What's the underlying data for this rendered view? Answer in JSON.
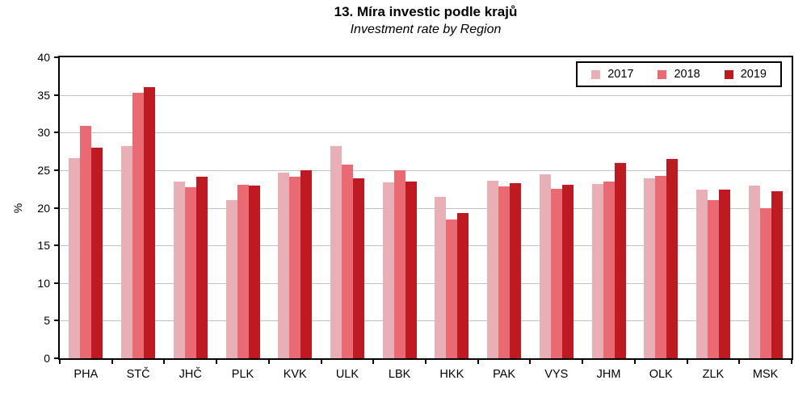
{
  "title": "13. Míra investic podle krajů",
  "subtitle": "Investment rate by Region",
  "chart_data": {
    "type": "bar",
    "categories": [
      "PHA",
      "STČ",
      "JHČ",
      "PLK",
      "KVK",
      "ULK",
      "LBK",
      "HKK",
      "PAK",
      "VYS",
      "JHM",
      "OLK",
      "ZLK",
      "MSK"
    ],
    "series": [
      {
        "name": "2017",
        "color": "#e8b0b6",
        "values": [
          26.6,
          28.2,
          23.5,
          21.0,
          24.7,
          28.2,
          23.4,
          21.5,
          23.6,
          24.5,
          23.2,
          23.9,
          22.4,
          23.0
        ]
      },
      {
        "name": "2018",
        "color": "#ea6a73",
        "values": [
          30.9,
          35.3,
          22.7,
          23.1,
          24.1,
          25.7,
          25.0,
          18.4,
          22.8,
          22.5,
          23.5,
          24.2,
          21.0,
          20.0
        ]
      },
      {
        "name": "2019",
        "color": "#be1a22",
        "values": [
          28.0,
          36.0,
          24.1,
          22.9,
          25.0,
          23.9,
          23.5,
          19.3,
          23.3,
          23.1,
          26.0,
          26.5,
          22.4,
          22.2
        ]
      }
    ],
    "xlabel": "",
    "ylabel": "%",
    "ylim": [
      0,
      40
    ],
    "ytick_step": 5,
    "y_tick_labels": [
      "0",
      "5",
      "10",
      "15",
      "20",
      "25",
      "30",
      "35",
      "40"
    ],
    "grid": true,
    "legend_position": "top-right",
    "legend_labels": [
      "2017",
      "2018",
      "2019"
    ]
  },
  "colors": {
    "grid": "#c3c3c3",
    "axis": "#000000",
    "background": "#ffffff",
    "series_2017": "#e8b0b6",
    "series_2018": "#ea6a73",
    "series_2019": "#be1a22"
  }
}
